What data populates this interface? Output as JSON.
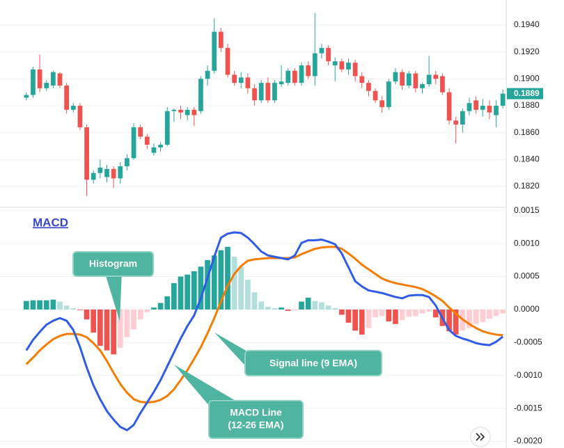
{
  "chart_data": [
    {
      "type": "candlestick",
      "open": [
        0.1886,
        0.1888,
        0.1907,
        0.1893,
        0.1895,
        0.1904,
        0.1895,
        0.1877,
        0.188,
        0.1864,
        0.1825,
        0.183,
        0.1827,
        0.1833,
        0.1826,
        0.1835,
        0.1841,
        0.1864,
        0.1857,
        0.1845,
        0.1849,
        0.1851,
        0.1876,
        0.1877,
        0.1873,
        0.1877,
        0.1876,
        0.19,
        0.1906,
        0.1935,
        0.1923,
        0.1903,
        0.1897,
        0.1901,
        0.1893,
        0.1884,
        0.1897,
        0.1884,
        0.1896,
        0.1897,
        0.1906,
        0.1897,
        0.191,
        0.1902,
        0.1919,
        0.1923,
        0.191,
        0.1913,
        0.1907,
        0.1912,
        0.1902,
        0.1897,
        0.1891,
        0.1884,
        0.1879,
        0.1898,
        0.1905,
        0.1895,
        0.1904,
        0.1893,
        0.1896,
        0.1903,
        0.1902,
        0.189,
        0.1869,
        0.1866,
        0.1876,
        0.1884,
        0.1877,
        0.188,
        0.1873,
        0.188
      ],
      "high": [
        0.189,
        0.1909,
        0.1918,
        0.1899,
        0.1906,
        0.1905,
        0.1897,
        0.1882,
        0.1882,
        0.1866,
        0.1832,
        0.184,
        0.1836,
        0.1835,
        0.1838,
        0.1844,
        0.1867,
        0.1866,
        0.1859,
        0.1852,
        0.1853,
        0.1879,
        0.1878,
        0.188,
        0.1879,
        0.1879,
        0.1902,
        0.191,
        0.1945,
        0.1938,
        0.1926,
        0.1906,
        0.1905,
        0.1904,
        0.1896,
        0.1899,
        0.1901,
        0.1899,
        0.191,
        0.1908,
        0.1908,
        0.1912,
        0.1913,
        0.1949,
        0.1926,
        0.1925,
        0.1916,
        0.1915,
        0.1915,
        0.1914,
        0.1905,
        0.1899,
        0.1893,
        0.1887,
        0.19,
        0.1908,
        0.1907,
        0.1906,
        0.1906,
        0.1897,
        0.1917,
        0.1906,
        0.1904,
        0.1893,
        0.1872,
        0.1878,
        0.1886,
        0.1887,
        0.1885,
        0.1884,
        0.1884,
        0.1892
      ],
      "low": [
        0.1884,
        0.1886,
        0.189,
        0.1891,
        0.1893,
        0.1893,
        0.1874,
        0.1875,
        0.1862,
        0.1813,
        0.1822,
        0.1826,
        0.1823,
        0.1819,
        0.1822,
        0.1832,
        0.184,
        0.1855,
        0.1848,
        0.1843,
        0.1846,
        0.185,
        0.1868,
        0.187,
        0.1869,
        0.1865,
        0.1874,
        0.1895,
        0.1904,
        0.192,
        0.1901,
        0.1895,
        0.1893,
        0.1889,
        0.188,
        0.1882,
        0.1882,
        0.1882,
        0.1894,
        0.1895,
        0.1895,
        0.1895,
        0.19,
        0.1895,
        0.1915,
        0.191,
        0.1898,
        0.1905,
        0.1903,
        0.1898,
        0.1893,
        0.1887,
        0.1882,
        0.1875,
        0.1877,
        0.1896,
        0.1892,
        0.1893,
        0.189,
        0.1889,
        0.1894,
        0.1896,
        0.1888,
        0.1866,
        0.1852,
        0.186,
        0.1873,
        0.1874,
        0.1872,
        0.187,
        0.1864,
        0.1878
      ],
      "close": [
        0.1888,
        0.1907,
        0.1893,
        0.1897,
        0.1905,
        0.1895,
        0.1877,
        0.188,
        0.1864,
        0.1825,
        0.183,
        0.1834,
        0.1833,
        0.1826,
        0.1835,
        0.1841,
        0.1864,
        0.1857,
        0.1851,
        0.1849,
        0.1851,
        0.1876,
        0.1877,
        0.1875,
        0.1877,
        0.1873,
        0.19,
        0.1906,
        0.1935,
        0.1923,
        0.1903,
        0.1897,
        0.1901,
        0.1893,
        0.1884,
        0.1897,
        0.1884,
        0.1897,
        0.1898,
        0.1906,
        0.1897,
        0.191,
        0.1902,
        0.1919,
        0.1923,
        0.1913,
        0.1913,
        0.1907,
        0.1912,
        0.1902,
        0.1897,
        0.1891,
        0.1884,
        0.1879,
        0.1898,
        0.1905,
        0.1895,
        0.1904,
        0.1893,
        0.1896,
        0.1903,
        0.19,
        0.189,
        0.1869,
        0.1866,
        0.1876,
        0.1882,
        0.1877,
        0.188,
        0.1875,
        0.188,
        0.1889
      ],
      "up_color": "#26a69a",
      "down_color": "#ef5350",
      "last_price": 0.1889,
      "ylim": [
        0.18045,
        0.19586
      ],
      "yticks": [
        {
          "value": 0.182,
          "label": "0.1820"
        },
        {
          "value": 0.184,
          "label": "0.1840"
        },
        {
          "value": 0.186,
          "label": "0.1860"
        },
        {
          "value": 0.188,
          "label": "0.1880"
        },
        {
          "value": 0.19,
          "label": "0.1900"
        },
        {
          "value": 0.192,
          "label": "0.1920"
        },
        {
          "value": 0.194,
          "label": "0.1940"
        }
      ],
      "grid": true
    },
    {
      "type": "macd",
      "title": "MACD",
      "histogram": {
        "values": [
          0.00013,
          0.00014,
          0.00014,
          0.00014,
          0.00015,
          0.00012,
          6e-05,
          2e-05,
          -1e-05,
          -0.00015,
          -0.00035,
          -0.00055,
          -0.00062,
          -0.00068,
          -0.00058,
          -0.00042,
          -0.0003,
          -0.00015,
          -4e-05,
          3e-05,
          0.0001,
          0.0002,
          0.0004,
          0.0005,
          0.00053,
          0.00058,
          0.00065,
          0.00075,
          0.00082,
          0.0009,
          0.00095,
          0.0008,
          0.00065,
          0.00045,
          0.00026,
          0.00012,
          4e-05,
          2e-05,
          3e-05,
          -2e-05,
          -1e-05,
          0.00012,
          0.00018,
          0.00013,
          0.00011,
          6e-05,
          2e-05,
          -8e-05,
          -0.0002,
          -0.00032,
          -0.00038,
          -0.00028,
          -0.00012,
          -0.0001,
          -0.00018,
          -0.00022,
          -0.00016,
          -0.00011,
          -0.0001,
          -6e-05,
          -3e-05,
          -0.00012,
          -0.00025,
          -0.00033,
          -0.00038,
          -0.00032,
          -0.00028,
          -0.00022,
          -0.00019,
          -0.00014,
          -0.0001,
          -6e-05
        ],
        "colors": {
          "positive_rising": "#26a69a",
          "positive_falling": "#b2dfdb",
          "negative_falling": "#ef5350",
          "negative_rising": "#ffcdd2"
        }
      },
      "macd": {
        "color": "#2f5ce6",
        "values": [
          -0.00062,
          -0.00046,
          -0.00034,
          -0.00023,
          -0.00017,
          -0.00013,
          -0.00017,
          -0.00031,
          -0.00057,
          -0.00088,
          -0.00115,
          -0.00136,
          -0.00154,
          -0.00167,
          -0.00178,
          -0.00183,
          -0.00175,
          -0.00157,
          -0.00141,
          -0.00125,
          -0.00107,
          -0.00086,
          -0.00065,
          -0.00044,
          -0.00025,
          -9e-05,
          0.00017,
          0.00048,
          0.0008,
          0.00109,
          0.00115,
          0.00117,
          0.00116,
          0.00109,
          0.00099,
          0.00088,
          0.00082,
          0.0008,
          0.00078,
          0.00076,
          0.00082,
          0.00101,
          0.00105,
          0.00105,
          0.00106,
          0.00103,
          0.00099,
          0.00085,
          0.00064,
          0.00043,
          0.00035,
          0.00029,
          0.00027,
          0.00025,
          0.00022,
          0.00019,
          0.00017,
          0.00021,
          0.00022,
          0.00022,
          0.00019,
          6e-05,
          -0.00013,
          -0.00031,
          -0.0004,
          -0.00044,
          -0.00047,
          -0.00051,
          -0.00053,
          -0.00054,
          -0.00049,
          -0.00041
        ]
      },
      "signal": {
        "color": "#f57c00",
        "values": [
          -0.00083,
          -0.00073,
          -0.00062,
          -0.00053,
          -0.00045,
          -0.0004,
          -0.00037,
          -0.00037,
          -0.00038,
          -0.00042,
          -0.00051,
          -0.00062,
          -0.00078,
          -0.00096,
          -0.00113,
          -0.00126,
          -0.00136,
          -0.0014,
          -0.00141,
          -0.0014,
          -0.00137,
          -0.00131,
          -0.00121,
          -0.00107,
          -0.00092,
          -0.00075,
          -0.00057,
          -0.00036,
          -0.00013,
          0.00012,
          0.00036,
          0.00054,
          0.00066,
          0.00074,
          0.00076,
          0.00077,
          0.00078,
          0.00078,
          0.00078,
          0.00078,
          0.00079,
          0.00084,
          0.00088,
          0.00092,
          0.00094,
          0.00095,
          0.00095,
          0.00092,
          0.00085,
          0.00077,
          0.00068,
          0.00061,
          0.00054,
          0.00047,
          0.00043,
          0.0004,
          0.00038,
          0.00036,
          0.00034,
          0.00031,
          0.00026,
          0.0002,
          0.00013,
          3e-05,
          -6e-05,
          -0.00015,
          -0.00022,
          -0.00028,
          -0.00033,
          -0.00036,
          -0.00038,
          -0.00039
        ]
      },
      "annotations": [
        "Histogram",
        "Signal line (9 EMA)",
        "MACD Line",
        "(12-26 EMA)"
      ],
      "ylim": [
        -0.0021,
        0.00155
      ],
      "yticks": [
        0.0015,
        {
          "value": 0.001,
          "label": "0.0010"
        },
        0.0005,
        {
          "value": 0,
          "label": "0.0000"
        },
        -0.0005,
        {
          "value": -0.001,
          "label": "-0.0010"
        },
        -0.0015,
        {
          "value": -0.002,
          "label": "-0.0020"
        }
      ],
      "grid": true
    }
  ]
}
